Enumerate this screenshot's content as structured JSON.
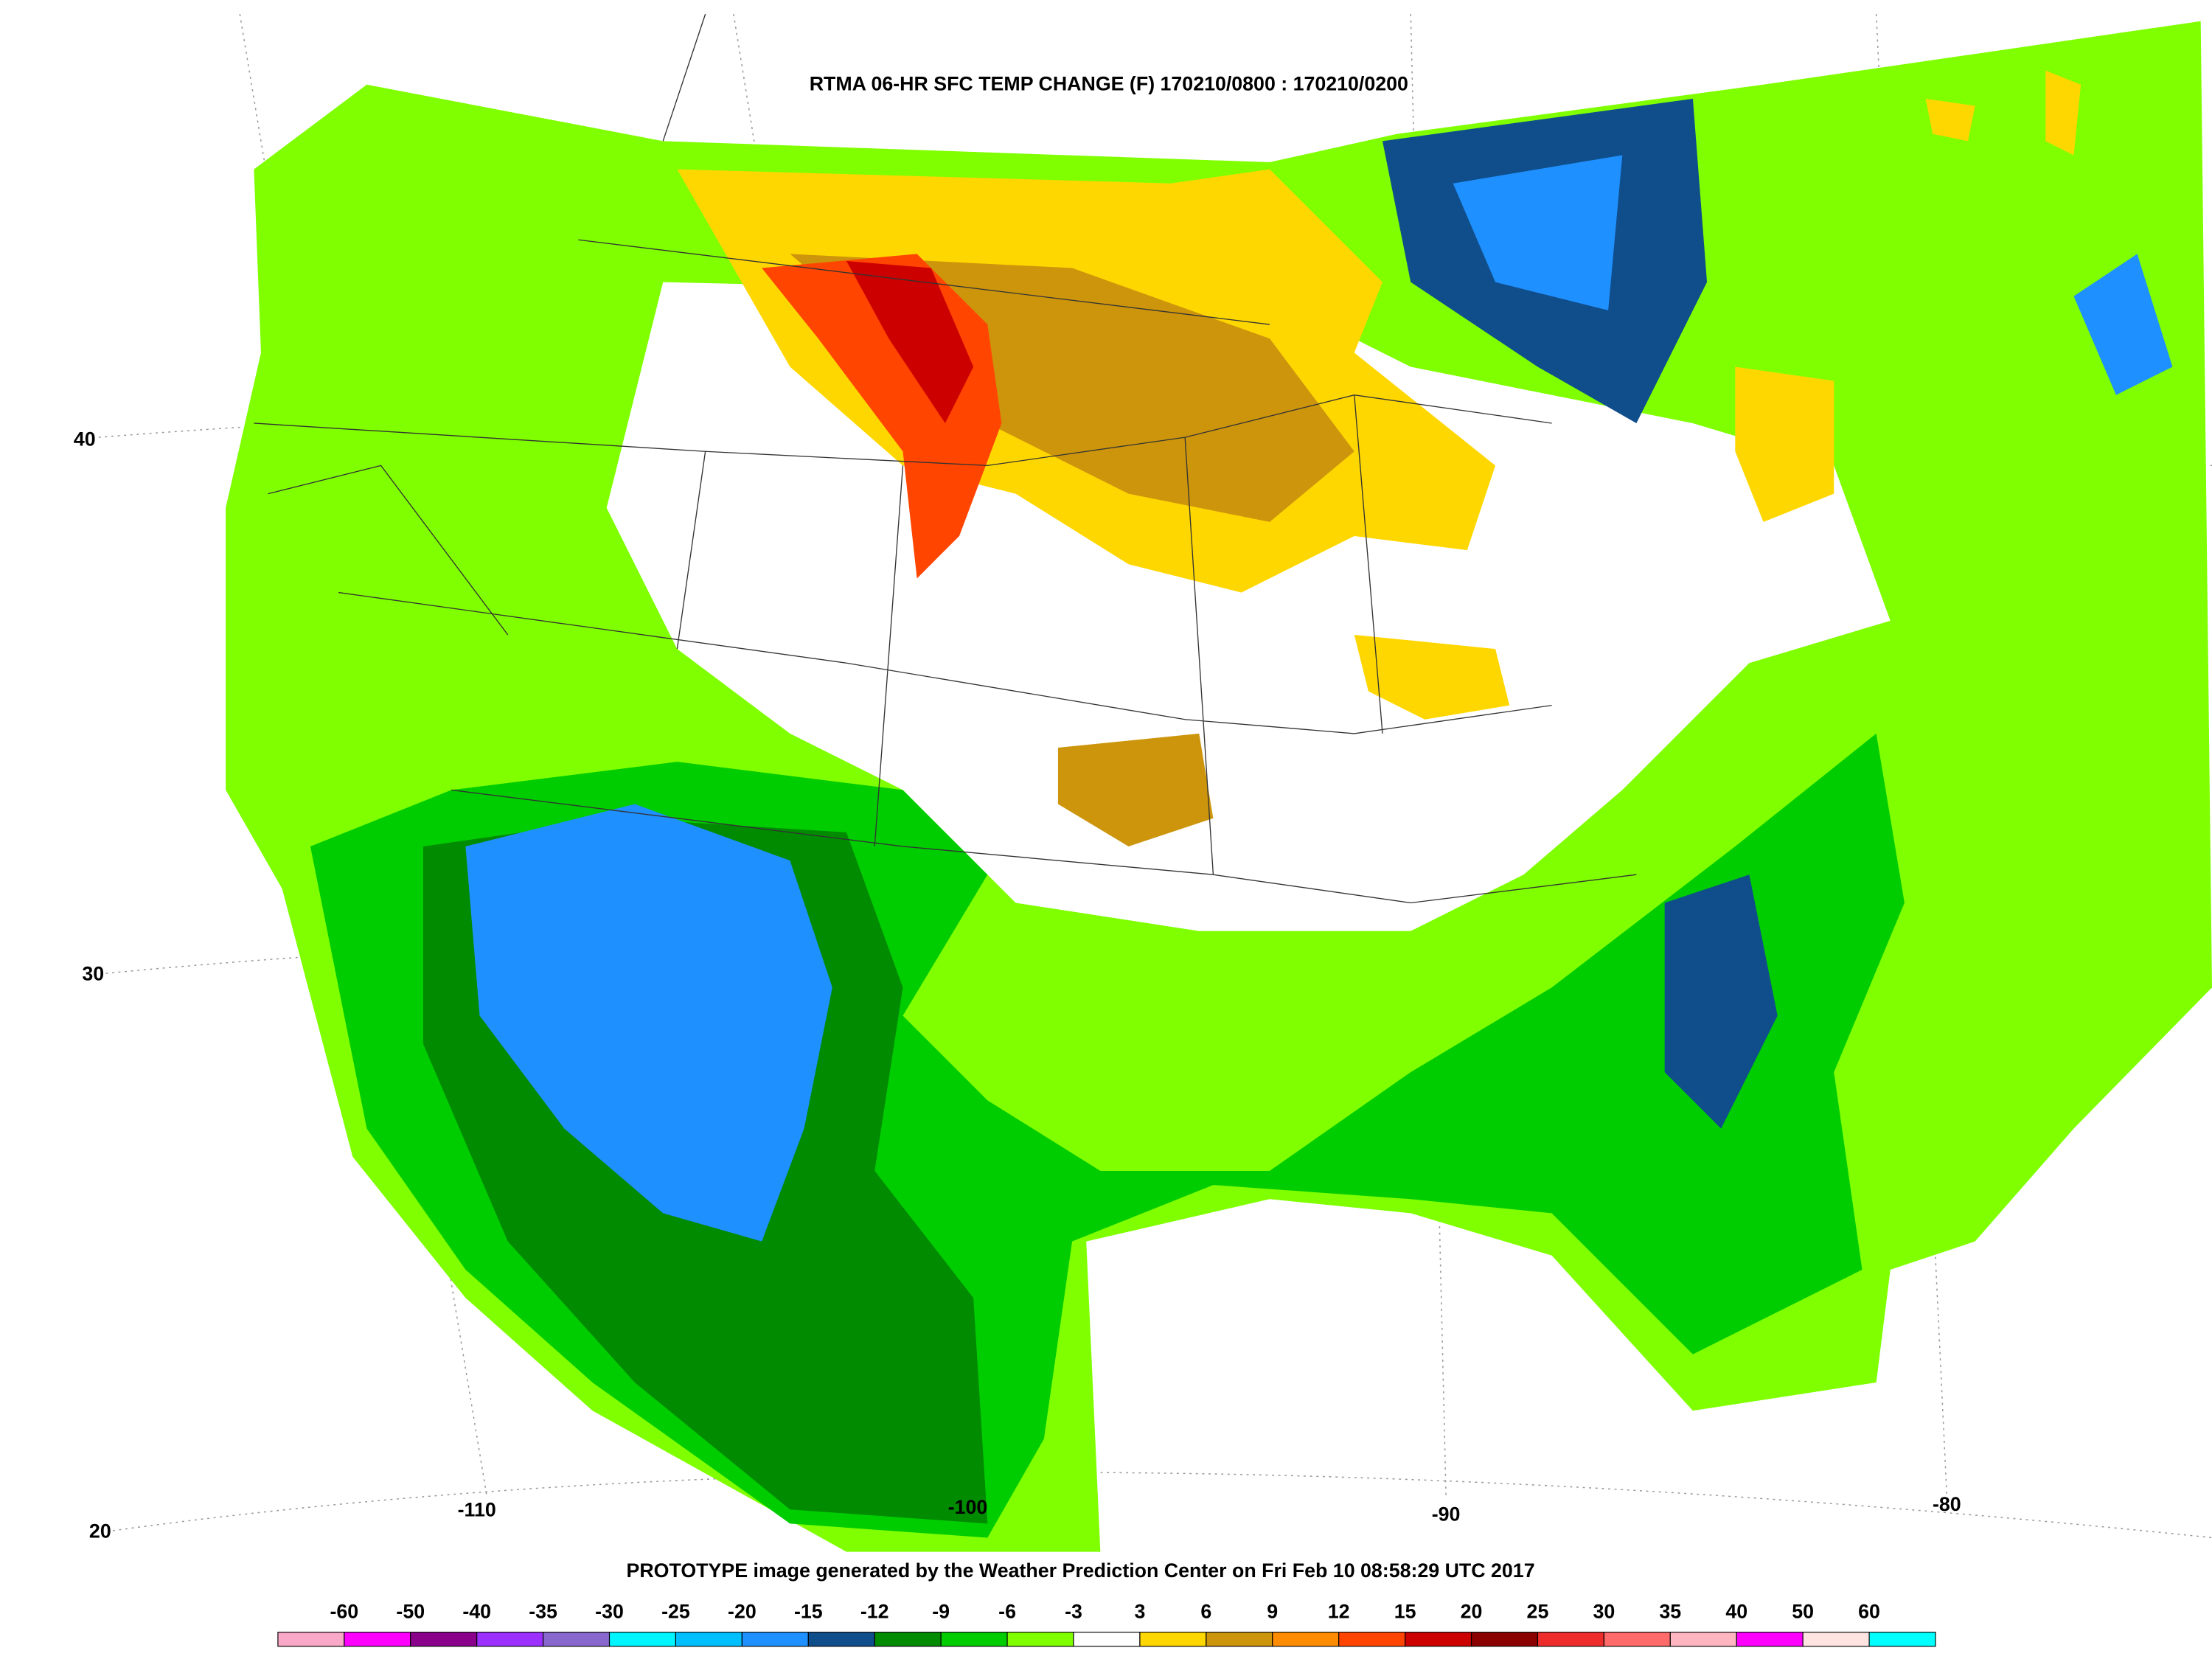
{
  "header": {
    "title": "RTMA 06-HR SFC TEMP CHANGE (F) 170210/0800 : 170210/0200"
  },
  "map": {
    "latitude_labels": [
      "40",
      "30",
      "20"
    ],
    "longitude_labels": [
      "-110",
      "-100",
      "-90",
      "-80"
    ]
  },
  "footer": {
    "text": "PROTOTYPE image generated by the Weather Prediction Center on Fri Feb 10 08:58:29 UTC 2017"
  },
  "legend": {
    "labels": [
      "-60",
      "-50",
      "-40",
      "-35",
      "-30",
      "-25",
      "-20",
      "-15",
      "-12",
      "-9",
      "-6",
      "-3",
      "3",
      "6",
      "9",
      "12",
      "15",
      "20",
      "25",
      "30",
      "35",
      "40",
      "50",
      "60"
    ],
    "colors": [
      "#f9a8c8",
      "#ff00ff",
      "#8b008b",
      "#9b30ff",
      "#8968cd",
      "#00f5ff",
      "#00bfff",
      "#1e90ff",
      "#104e8b",
      "#008b00",
      "#00cd00",
      "#7fff00",
      "#ffffff",
      "#ffd700",
      "#cd950c",
      "#ff8c00",
      "#ff4500",
      "#cd0000",
      "#8b0000",
      "#ee2c2c",
      "#ff6a6a",
      "#ffb6c1",
      "#ff00ff",
      "#ffe4e1",
      "#00ffff"
    ]
  }
}
